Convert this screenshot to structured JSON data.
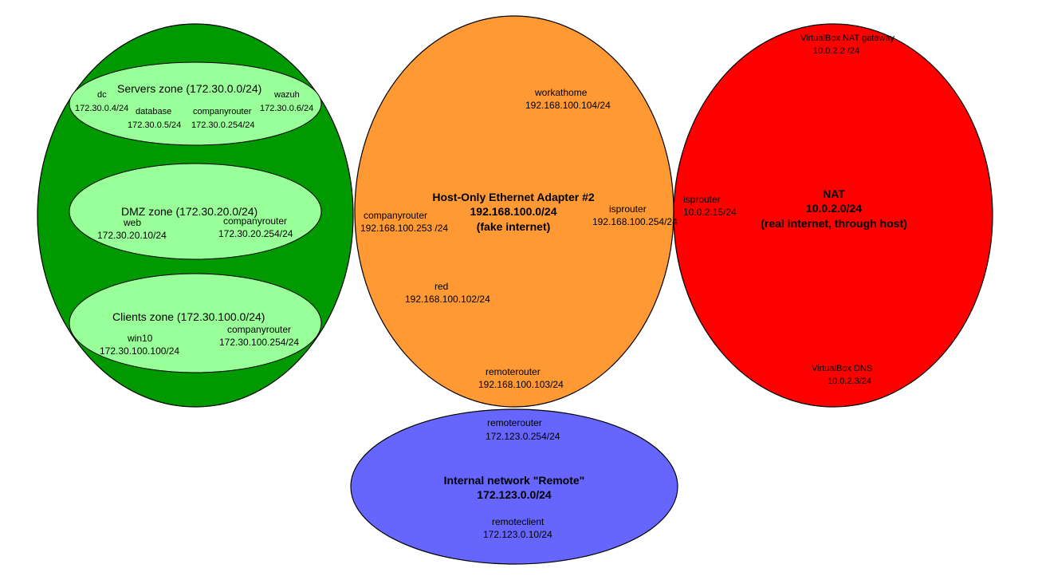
{
  "colors": {
    "company": "#009900",
    "zone": "#99FF99",
    "hostonly": "#FF9933",
    "nat": "#FF0000",
    "remote": "#6666FF",
    "outline": "#000000"
  },
  "company": {
    "servers": {
      "title": "Servers zone (172.30.0.0/24)",
      "dc": {
        "name": "dc",
        "ip": "172.30.0.4/24"
      },
      "database": {
        "name": "database",
        "ip": "172.30.0.5/24"
      },
      "companyrouter": {
        "name": "companyrouter",
        "ip": "172.30.0.254/24"
      },
      "wazuh": {
        "name": "wazuh",
        "ip": "172.30.0.6/24"
      }
    },
    "dmz": {
      "title": "DMZ zone (172.30.20.0/24)",
      "web": {
        "name": "web",
        "ip": "172.30.20.10/24"
      },
      "companyrouter": {
        "name": "companyrouter",
        "ip": "172.30.20.254/24"
      }
    },
    "clients": {
      "title": "Clients zone (172.30.100.0/24)",
      "win10": {
        "name": "win10",
        "ip": "172.30.100.100/24"
      },
      "companyrouter": {
        "name": "companyrouter",
        "ip": "172.30.100.254/24"
      }
    }
  },
  "hostonly": {
    "title": "Host-Only Ethernet Adapter #2",
    "subnet": "192.168.100.0/24",
    "note": "(fake internet)",
    "workathome": {
      "name": "workathome",
      "ip": "192.168.100.104/24"
    },
    "companyrouter": {
      "name": "companyrouter",
      "ip": "192.168.100.253 /24"
    },
    "isprouter": {
      "name": "isprouter",
      "ip": "192.168.100.254/24"
    },
    "red": {
      "name": "red",
      "ip": "192.168.100.102/24"
    },
    "remoterouter": {
      "name": "remoterouter",
      "ip": "192.168.100.103/24"
    }
  },
  "nat": {
    "title": "NAT",
    "subnet": "10.0.2.0/24",
    "note": "(real internet, through host)",
    "gateway": {
      "name": "VirtualBox NAT gateway",
      "ip": "10.0.2.2 /24"
    },
    "isprouter": {
      "name": "isprouter",
      "ip": "10.0.2.15/24"
    },
    "dns": {
      "name": "VirtualBox DNS",
      "ip": "10.0.2.3/24"
    }
  },
  "remote": {
    "title": "Internal network \"Remote\"",
    "subnet": "172.123.0.0/24",
    "remoterouter": {
      "name": "remoterouter",
      "ip": "172.123.0.254/24"
    },
    "remoteclient": {
      "name": "remoteclient",
      "ip": "172.123.0.10/24"
    }
  }
}
